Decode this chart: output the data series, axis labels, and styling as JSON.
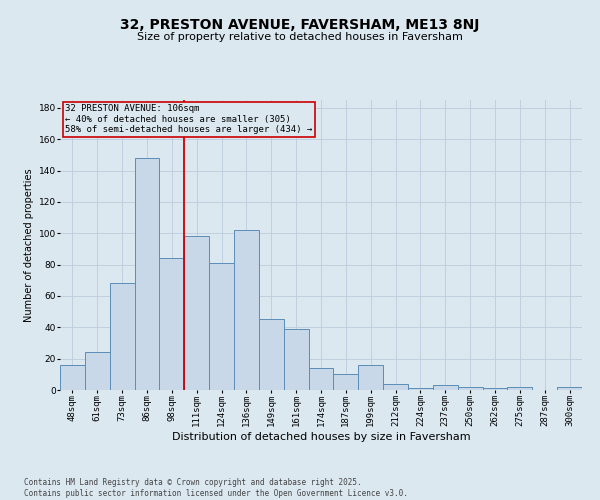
{
  "title1": "32, PRESTON AVENUE, FAVERSHAM, ME13 8NJ",
  "title2": "Size of property relative to detached houses in Faversham",
  "xlabel": "Distribution of detached houses by size in Faversham",
  "ylabel": "Number of detached properties",
  "footnote": "Contains HM Land Registry data © Crown copyright and database right 2025.\nContains public sector information licensed under the Open Government Licence v3.0.",
  "bar_labels": [
    "48sqm",
    "61sqm",
    "73sqm",
    "86sqm",
    "98sqm",
    "111sqm",
    "124sqm",
    "136sqm",
    "149sqm",
    "161sqm",
    "174sqm",
    "187sqm",
    "199sqm",
    "212sqm",
    "224sqm",
    "237sqm",
    "250sqm",
    "262sqm",
    "275sqm",
    "287sqm",
    "300sqm"
  ],
  "bar_values": [
    16,
    24,
    68,
    148,
    84,
    98,
    81,
    102,
    45,
    39,
    14,
    10,
    16,
    4,
    1,
    3,
    2,
    1,
    2,
    0,
    2
  ],
  "bar_color": "#c8d8e8",
  "bar_edge_color": "#5b8db8",
  "grid_color": "#bbccdd",
  "bg_color": "#dce8f0",
  "vline_x": 4.5,
  "vline_color": "#cc0000",
  "annotation_text": "32 PRESTON AVENUE: 106sqm\n← 40% of detached houses are smaller (305)\n58% of semi-detached houses are larger (434) →",
  "annotation_box_color": "#cc0000",
  "ylim": [
    0,
    185
  ],
  "yticks": [
    0,
    20,
    40,
    60,
    80,
    100,
    120,
    140,
    160,
    180
  ],
  "title1_fontsize": 10,
  "title2_fontsize": 8,
  "xlabel_fontsize": 8,
  "ylabel_fontsize": 7,
  "tick_fontsize": 6.5,
  "annot_fontsize": 6.5,
  "footnote_fontsize": 5.5
}
